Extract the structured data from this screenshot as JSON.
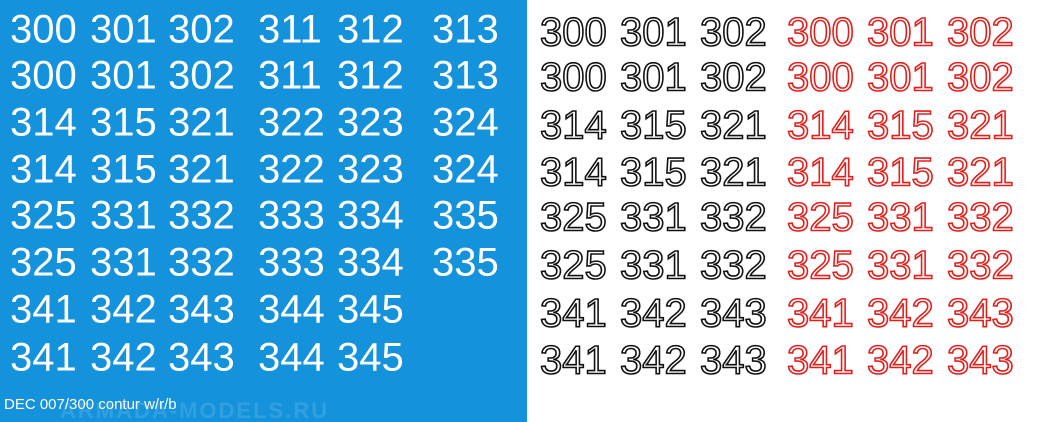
{
  "blue_panel": {
    "rows": [
      [
        "300",
        "301",
        "302",
        "311",
        "312",
        "313"
      ],
      [
        "300",
        "301",
        "302",
        "311",
        "312",
        "313"
      ],
      [
        "314",
        "315",
        "321",
        "322",
        "323",
        "324"
      ],
      [
        "314",
        "315",
        "321",
        "322",
        "323",
        "324"
      ],
      [
        "325",
        "331",
        "332",
        "333",
        "334",
        "335"
      ],
      [
        "325",
        "331",
        "332",
        "333",
        "334",
        "335"
      ],
      [
        "341",
        "342",
        "343",
        "344",
        "345"
      ],
      [
        "341",
        "342",
        "343",
        "344",
        "345"
      ]
    ],
    "caption": "DEC 007/300 contur w/r/b",
    "watermark": "ARMADA-MODELS.RU"
  },
  "black_panel": {
    "rows": [
      [
        "300",
        "301",
        "302"
      ],
      [
        "300",
        "301",
        "302"
      ],
      [
        "314",
        "315",
        "321"
      ],
      [
        "314",
        "315",
        "321"
      ],
      [
        "325",
        "331",
        "332"
      ],
      [
        "325",
        "331",
        "332"
      ],
      [
        "341",
        "342",
        "343"
      ],
      [
        "341",
        "342",
        "343"
      ]
    ]
  },
  "red_panel": {
    "rows": [
      [
        "300",
        "301",
        "302"
      ],
      [
        "300",
        "301",
        "302"
      ],
      [
        "314",
        "315",
        "321"
      ],
      [
        "314",
        "315",
        "321"
      ],
      [
        "325",
        "331",
        "332"
      ],
      [
        "325",
        "331",
        "332"
      ],
      [
        "341",
        "342",
        "343"
      ],
      [
        "341",
        "342",
        "343"
      ]
    ]
  }
}
